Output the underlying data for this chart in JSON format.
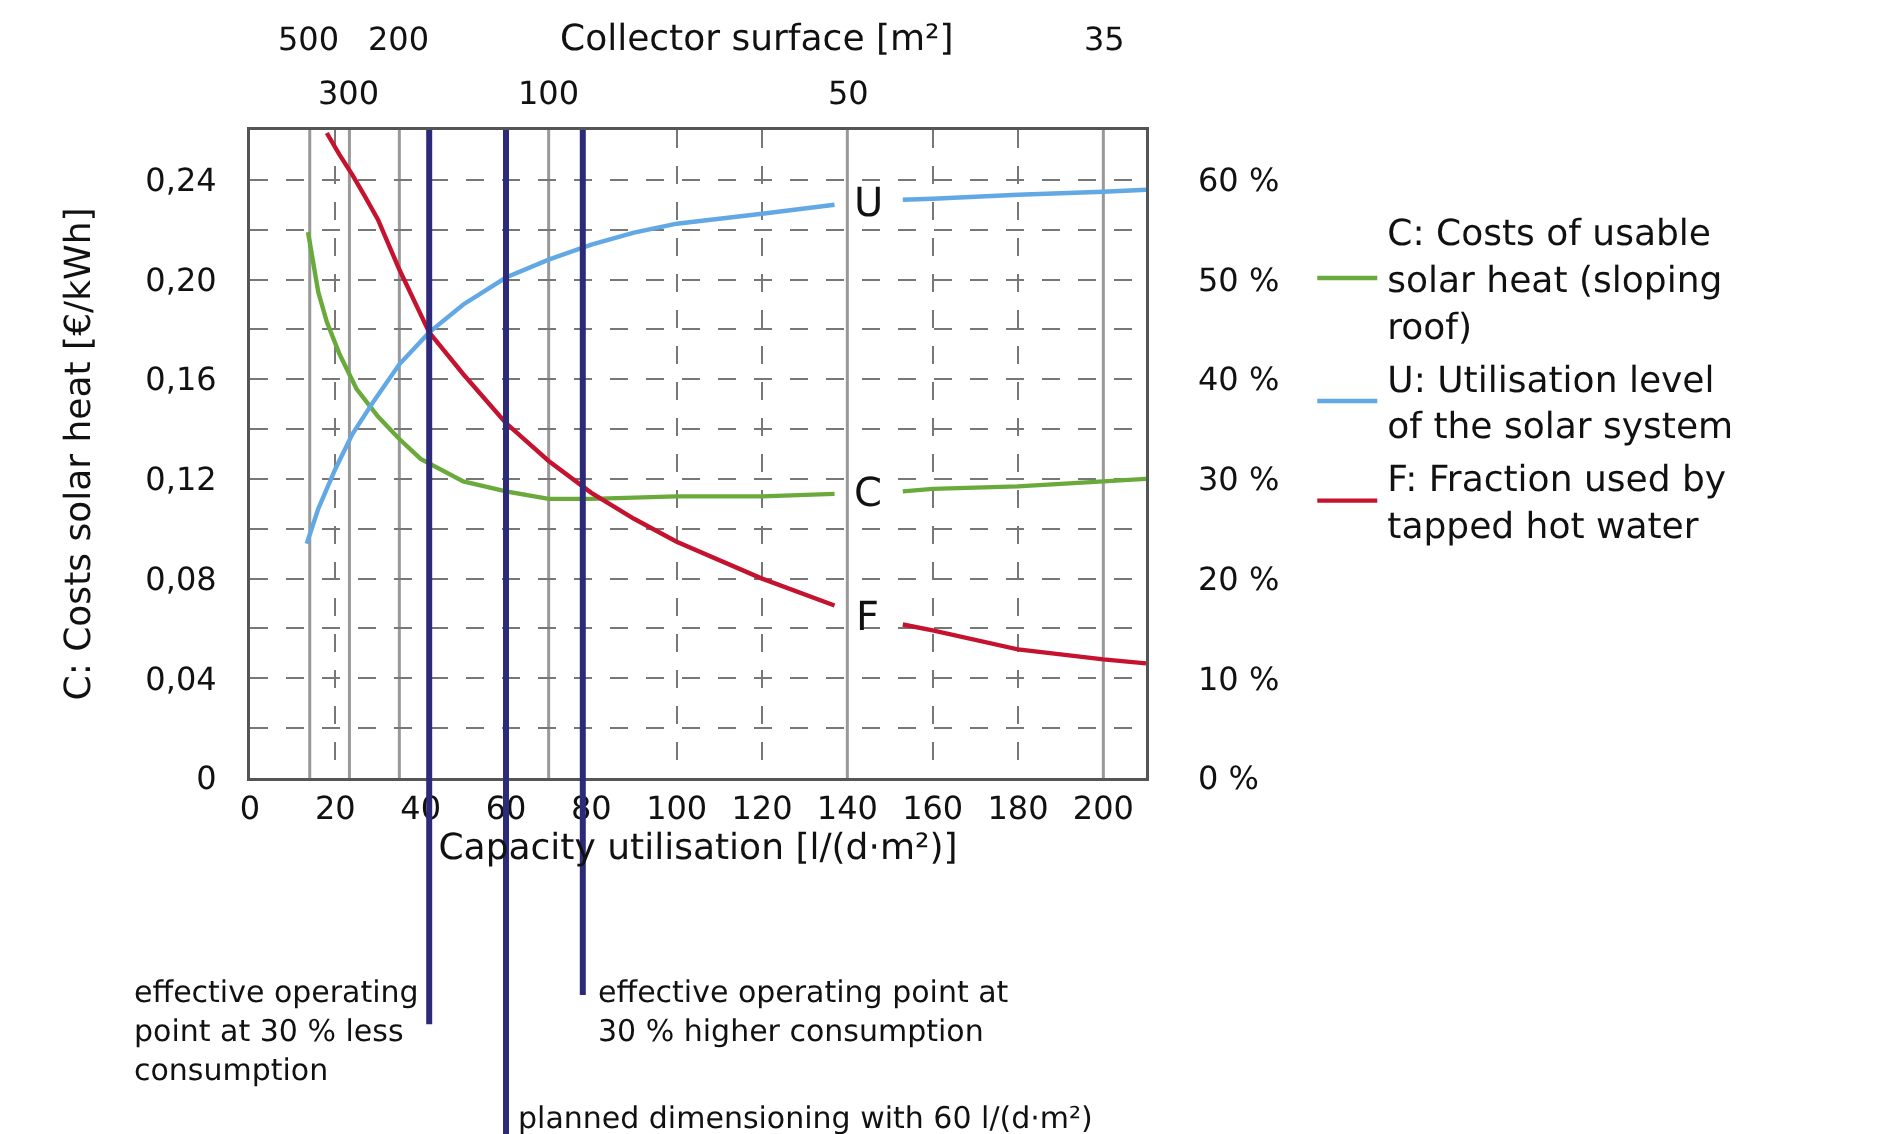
{
  "chart_data": {
    "type": "line",
    "xlabel": "Capacity utilisation [l/(d·m²)]",
    "ylabel": "C: Costs solar heat [€/kWh]",
    "xlim": [
      0,
      210
    ],
    "xticks": [
      0,
      20,
      40,
      60,
      80,
      100,
      120,
      140,
      160,
      180,
      200
    ],
    "ylim": [
      0,
      0.26
    ],
    "yticks": [
      0,
      {
        "value": 0.02,
        "label": null
      },
      {
        "value": 0.04,
        "label": "0,04"
      },
      {
        "value": 0.06,
        "label": null
      },
      {
        "value": 0.08,
        "label": "0,08"
      },
      {
        "value": 0.1,
        "label": null
      },
      {
        "value": 0.12,
        "label": "0,12"
      },
      {
        "value": 0.14,
        "label": null
      },
      {
        "value": 0.16,
        "label": "0,16"
      },
      {
        "value": 0.18,
        "label": null
      },
      {
        "value": 0.2,
        "label": "0,20"
      },
      {
        "value": 0.22,
        "label": null
      },
      {
        "value": 0.24,
        "label": "0,24"
      }
    ],
    "y2lim": [
      0,
      65
    ],
    "y2ticks": [
      {
        "value": 0,
        "label": "0 %"
      },
      {
        "value": 10,
        "label": "10 %"
      },
      {
        "value": 20,
        "label": "20 %"
      },
      {
        "value": 30,
        "label": "30 %"
      },
      {
        "value": 40,
        "label": "40 %"
      },
      {
        "value": 50,
        "label": "50 %"
      },
      {
        "value": 60,
        "label": "60 %"
      }
    ],
    "grid": true,
    "legend": "right",
    "line_style": "solid",
    "marker": "none",
    "series": [
      {
        "name": "C: Costs of usable solar heat (sloping roof)",
        "color": "#6aaa3c",
        "x": [
          13.6,
          16,
          18,
          21,
          25,
          30,
          35,
          40,
          50,
          60,
          70,
          80,
          100,
          120,
          137,
          145,
          153,
          160,
          180,
          200,
          210
        ],
        "values": [
          0.219,
          0.195,
          0.183,
          0.17,
          0.156,
          0.145,
          0.136,
          0.128,
          0.119,
          0.115,
          0.112,
          0.112,
          0.113,
          0.113,
          0.114,
          null,
          0.115,
          0.116,
          0.117,
          0.119,
          0.12
        ]
      },
      {
        "name": "U: Utilisation level of the solar system",
        "color": "#62a8e5",
        "axis": "y2",
        "x": [
          13.3,
          16,
          20,
          24,
          29,
          35,
          42,
          50,
          60,
          70,
          80,
          90,
          100,
          120,
          137,
          145,
          153,
          160,
          180,
          200,
          210
        ],
        "values": [
          23.5,
          27,
          31,
          34.5,
          37.8,
          41.5,
          44.7,
          47.5,
          50.2,
          52,
          53.5,
          54.7,
          55.6,
          56.6,
          57.5,
          null,
          58,
          58.1,
          58.5,
          58.8,
          59
        ]
      },
      {
        "name": "F: Fraction used by tapped hot water",
        "color": "#c4122f",
        "axis": "y2",
        "x": [
          18,
          21,
          24,
          27,
          30,
          35,
          42,
          50,
          60,
          70,
          80,
          90,
          100,
          120,
          137,
          145,
          153,
          160,
          180,
          200,
          210
        ],
        "values": [
          64.7,
          62.5,
          60.5,
          58.3,
          56,
          51,
          44.7,
          40.5,
          35.6,
          31.8,
          28.6,
          26,
          23.7,
          20,
          17.3,
          null,
          15.4,
          14.8,
          12.9,
          11.9,
          11.5
        ]
      }
    ],
    "annotations": [
      "Collector surface [m²]",
      "500",
      "300",
      "200",
      "100",
      "50",
      "35",
      "C",
      "U",
      "F"
    ],
    "ref_lines": [
      {
        "axis": "x",
        "value": 14,
        "color": "#999999"
      },
      {
        "axis": "x",
        "value": 23.3,
        "color": "#999999"
      },
      {
        "axis": "x",
        "value": 35,
        "color": "#999999"
      },
      {
        "axis": "x",
        "value": 70,
        "color": "#999999"
      },
      {
        "axis": "x",
        "value": 140,
        "color": "#999999"
      },
      {
        "axis": "x",
        "value": 200,
        "color": "#999999"
      },
      {
        "axis": "x",
        "value": 42,
        "label": "effective operating point at 30 % less consumption",
        "color": "#2e2a7a"
      },
      {
        "axis": "x",
        "value": 60,
        "label": "planned dimensioning with 60 l/(d·m²)",
        "color": "#2e2a7a"
      },
      {
        "axis": "x",
        "value": 78,
        "label": "effective operating point at 30 % higher consumption",
        "color": "#2e2a7a"
      }
    ]
  }
}
